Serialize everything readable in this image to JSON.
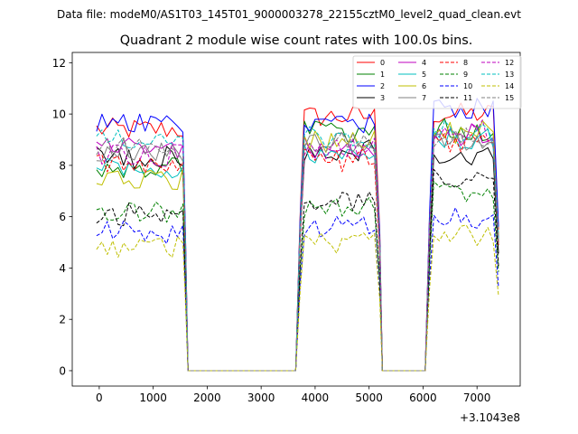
{
  "chart_data": {
    "type": "line",
    "suptitle": "Data file: modeM0/AS1T03_145T01_9000003278_22155cztM0_level2_quad_clean.evt",
    "title": "Quadrant 2 module wise count rates with 100.0s bins.",
    "xlabel": "",
    "ylabel": "",
    "offset_label": "+3.1043e8",
    "xlim": [
      -500,
      7800
    ],
    "ylim": [
      -0.6,
      12.4
    ],
    "xticks": [
      0,
      1000,
      2000,
      3000,
      4000,
      5000,
      6000,
      7000
    ],
    "xtick_labels": [
      "0",
      "1000",
      "2000",
      "3000",
      "4000",
      "5000",
      "6000",
      "7000"
    ],
    "yticks": [
      0,
      2,
      4,
      6,
      8,
      10,
      12
    ],
    "ytick_labels": [
      "0",
      "2",
      "4",
      "6",
      "8",
      "10",
      "12"
    ],
    "grid": false,
    "legend_position": "top-right",
    "segments": [
      [
        -50,
        1550
      ],
      [
        3800,
        5150
      ],
      [
        6200,
        7350
      ]
    ],
    "series": [
      {
        "name": "0",
        "color": "#ff0000",
        "dash": "solid",
        "levels": [
          9.4,
          9.9,
          10.0
        ]
      },
      {
        "name": "1",
        "color": "#008000",
        "dash": "solid",
        "levels": [
          7.9,
          9.3,
          9.4
        ]
      },
      {
        "name": "2",
        "color": "#0000ff",
        "dash": "solid",
        "levels": [
          9.6,
          9.7,
          10.2
        ]
      },
      {
        "name": "3",
        "color": "#000000",
        "dash": "solid",
        "levels": [
          8.3,
          8.6,
          8.3
        ]
      },
      {
        "name": "4",
        "color": "#bf00bf",
        "dash": "solid",
        "levels": [
          8.7,
          8.7,
          9.2
        ]
      },
      {
        "name": "5",
        "color": "#00bfbf",
        "dash": "solid",
        "levels": [
          7.9,
          8.4,
          9.0
        ]
      },
      {
        "name": "6",
        "color": "#bfbf00",
        "dash": "solid",
        "levels": [
          7.5,
          8.9,
          9.3
        ]
      },
      {
        "name": "7",
        "color": "#808080",
        "dash": "solid",
        "levels": [
          8.6,
          8.9,
          9.0
        ]
      },
      {
        "name": "8",
        "color": "#ff0000",
        "dash": "dashed",
        "levels": [
          8.1,
          8.2,
          8.9
        ]
      },
      {
        "name": "9",
        "color": "#008000",
        "dash": "dashed",
        "levels": [
          6.2,
          6.4,
          7.0
        ]
      },
      {
        "name": "10",
        "color": "#0000ff",
        "dash": "dashed",
        "levels": [
          5.4,
          5.6,
          5.9
        ]
      },
      {
        "name": "11",
        "color": "#000000",
        "dash": "dashed",
        "levels": [
          6.1,
          6.6,
          7.4
        ]
      },
      {
        "name": "12",
        "color": "#bf00bf",
        "dash": "dashed",
        "levels": [
          8.4,
          8.7,
          9.4
        ]
      },
      {
        "name": "13",
        "color": "#00bfbf",
        "dash": "dashed",
        "levels": [
          9.0,
          9.1,
          9.3
        ]
      },
      {
        "name": "14",
        "color": "#bfbf00",
        "dash": "dashed",
        "levels": [
          4.8,
          5.0,
          5.3
        ]
      },
      {
        "name": "15",
        "color": "#808080",
        "dash": "dashed",
        "levels": [
          8.7,
          8.9,
          9.1
        ]
      }
    ]
  }
}
